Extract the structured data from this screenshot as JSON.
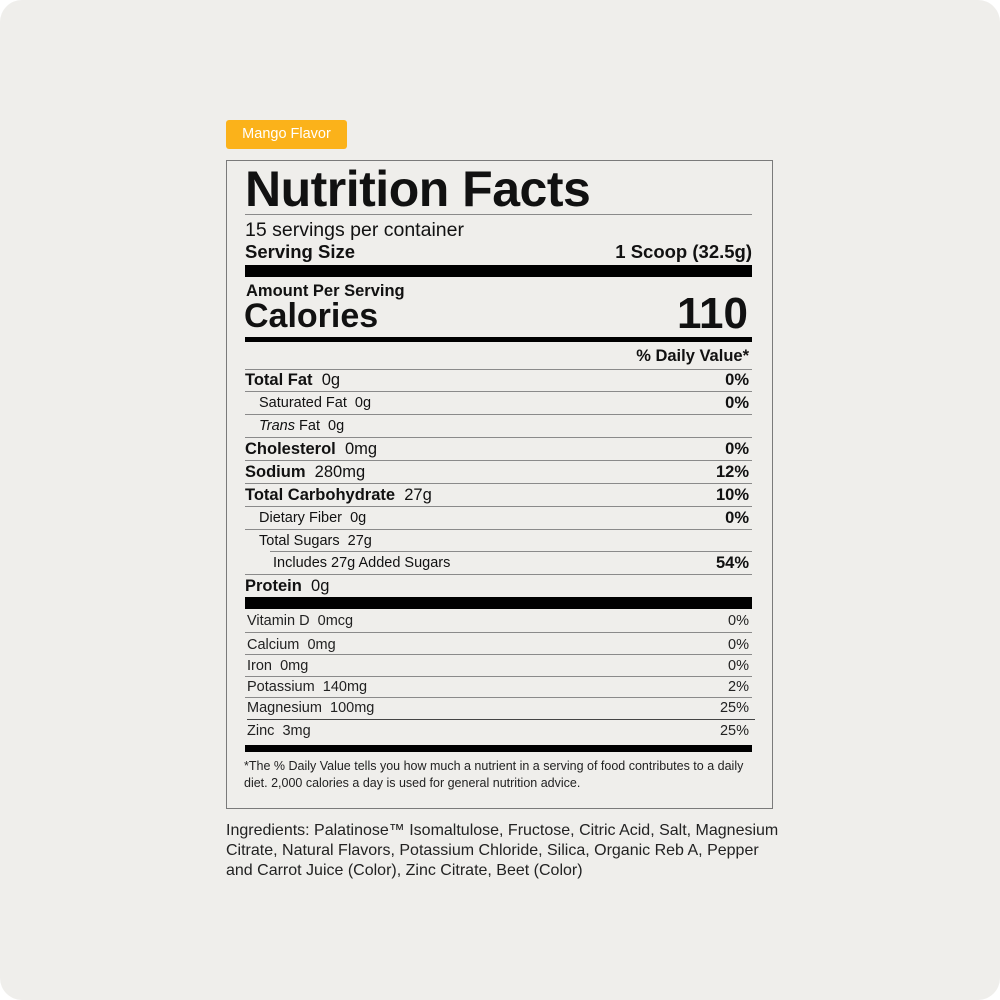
{
  "badge": {
    "label": "Mango Flavor",
    "color": "#fbb21a"
  },
  "label": {
    "title": "Nutrition Facts",
    "servings_per_container": "15 servings per container",
    "serving_size_label": "Serving Size",
    "serving_size_value": "1 Scoop (32.5g)",
    "amount_per_serving": "Amount Per Serving",
    "calories_label": "Calories",
    "calories_value": "110",
    "daily_value_header": "% Daily Value*",
    "nutrients": [
      {
        "name": "Total Fat",
        "amount": "0g",
        "dv": "0%"
      },
      {
        "name": "Saturated Fat",
        "amount": "0g",
        "dv": "0%"
      },
      {
        "name": "Trans",
        "name_suffix": "Fat",
        "amount": "0g",
        "dv": ""
      },
      {
        "name": "Cholesterol",
        "amount": "0mg",
        "dv": "0%"
      },
      {
        "name": "Sodium",
        "amount": "280mg",
        "dv": "12%"
      },
      {
        "name": "Total Carbohydrate",
        "amount": "27g",
        "dv": "10%"
      },
      {
        "name": "Dietary Fiber",
        "amount": "0g",
        "dv": "0%"
      },
      {
        "name": "Total Sugars",
        "amount": "27g",
        "dv": ""
      },
      {
        "name": "Includes 27g Added Sugars",
        "amount": "",
        "dv": "54%"
      },
      {
        "name": "Protein",
        "amount": "0g",
        "dv": ""
      }
    ],
    "vitamins": [
      {
        "name": "Vitamin D",
        "amount": "0mcg",
        "dv": "0%"
      },
      {
        "name": "Calcium",
        "amount": "0mg",
        "dv": "0%"
      },
      {
        "name": "Iron",
        "amount": "0mg",
        "dv": "0%"
      },
      {
        "name": "Potassium",
        "amount": "140mg",
        "dv": "2%"
      },
      {
        "name": "Magnesium",
        "amount": "100mg",
        "dv": "25%"
      },
      {
        "name": "Zinc",
        "amount": "3mg",
        "dv": "25%"
      }
    ],
    "footnote": "*The % Daily Value tells you how much a nutrient in a serving of food contributes to a daily diet. 2,000 calories a day is used for general nutrition advice."
  },
  "ingredients": "Ingredients: Palatinose™ Isomaltulose, Fructose, Citric Acid, Salt, Magnesium Citrate, Natural Flavors, Potassium Chloride, Silica, Organic Reb A, Pepper and Carrot Juice (Color), Zinc Citrate, Beet (Color)"
}
